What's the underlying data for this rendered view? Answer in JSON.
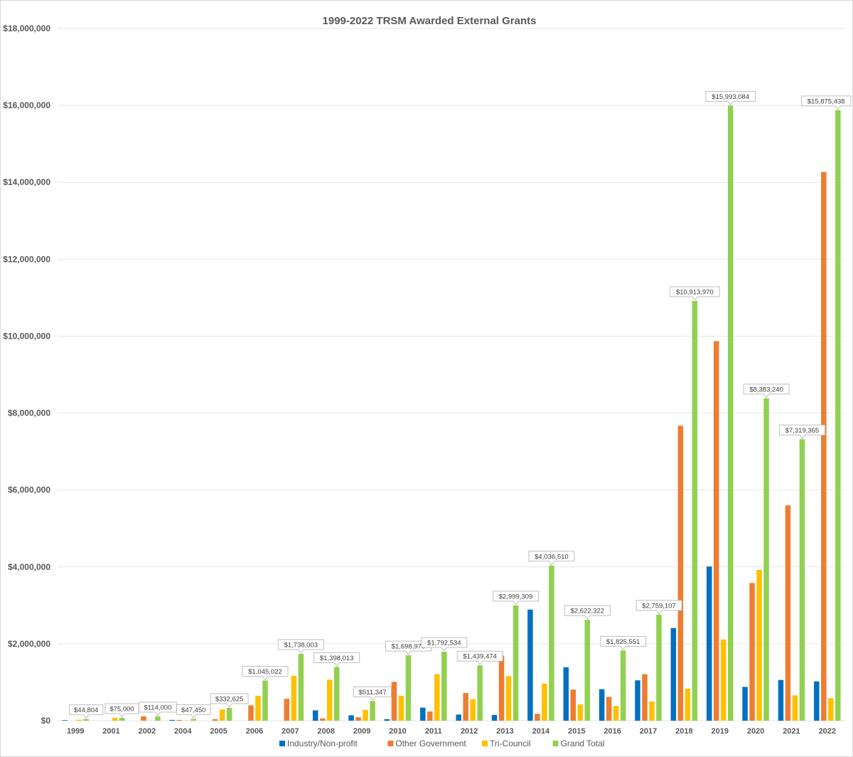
{
  "chart_data": {
    "type": "bar",
    "title": "1999-2022 TRSM Awarded External Grants",
    "xlabel": "",
    "ylabel": "",
    "ylim": [
      0,
      18000000
    ],
    "yticks": [
      "$0",
      "$2,000,000",
      "$4,000,000",
      "$6,000,000",
      "$8,000,000",
      "$10,000,000",
      "$12,000,000",
      "$14,000,000",
      "$16,000,000",
      "$18,000,000"
    ],
    "grid": true,
    "legend_position": "bottom",
    "categories": [
      "1999",
      "2001",
      "2002",
      "2004",
      "2005",
      "2006",
      "2007",
      "2008",
      "2009",
      "2010",
      "2011",
      "2012",
      "2013",
      "2014",
      "2015",
      "2016",
      "2017",
      "2018",
      "2019",
      "2020",
      "2021",
      "2022"
    ],
    "series": [
      {
        "name": "Industry/Non-profit",
        "color": "#0070c0",
        "values": [
          15000,
          0,
          0,
          20000,
          0,
          0,
          0,
          270000,
          140000,
          40000,
          340000,
          160000,
          150000,
          2890000,
          1390000,
          820000,
          1050000,
          2410000,
          4010000,
          880000,
          1060000,
          1020000
        ]
      },
      {
        "name": "Other Government",
        "color": "#ed7d31",
        "values": [
          0,
          0,
          114000,
          20000,
          40000,
          400000,
          570000,
          60000,
          90000,
          1010000,
          240000,
          720000,
          1690000,
          180000,
          810000,
          620000,
          1210000,
          7670000,
          9870000,
          3580000,
          5600000,
          14270000
        ]
      },
      {
        "name": "Tri-Council",
        "color": "#ffc000",
        "values": [
          25000,
          75000,
          0,
          7450,
          292625,
          645022,
          1168003,
          1068013,
          281347,
          648970,
          1208534,
          559474,
          1159309,
          966510,
          422322,
          385551,
          499107,
          833970,
          2113084,
          3923240,
          659365,
          585438
        ]
      },
      {
        "name": "Grand Total",
        "color": "#92d050",
        "values": [
          44804,
          75000,
          114000,
          47450,
          332625,
          1045022,
          1738003,
          1398013,
          511347,
          1698970,
          1792534,
          1439474,
          2999309,
          4036510,
          2622322,
          1825551,
          2759107,
          10913970,
          15993084,
          8383240,
          7319365,
          15875438
        ]
      }
    ],
    "data_labels": {
      "series": "Grand Total",
      "labels": [
        "$44,804",
        "$75,000",
        "$114,000",
        "$47,450",
        "$332,625",
        "$1,045,022",
        "$1,738,003",
        "$1,398,013",
        "$511,347",
        "$1,698,970",
        "$1,792,534",
        "$1,439,474",
        "$2,999,309",
        "$4,036,510",
        "$2,622,322",
        "$1,825,551",
        "$2,759,107",
        "$10,913,970",
        "$15,993,084",
        "$8,383,240",
        "$7,319,365",
        "$15,875,438"
      ]
    }
  }
}
